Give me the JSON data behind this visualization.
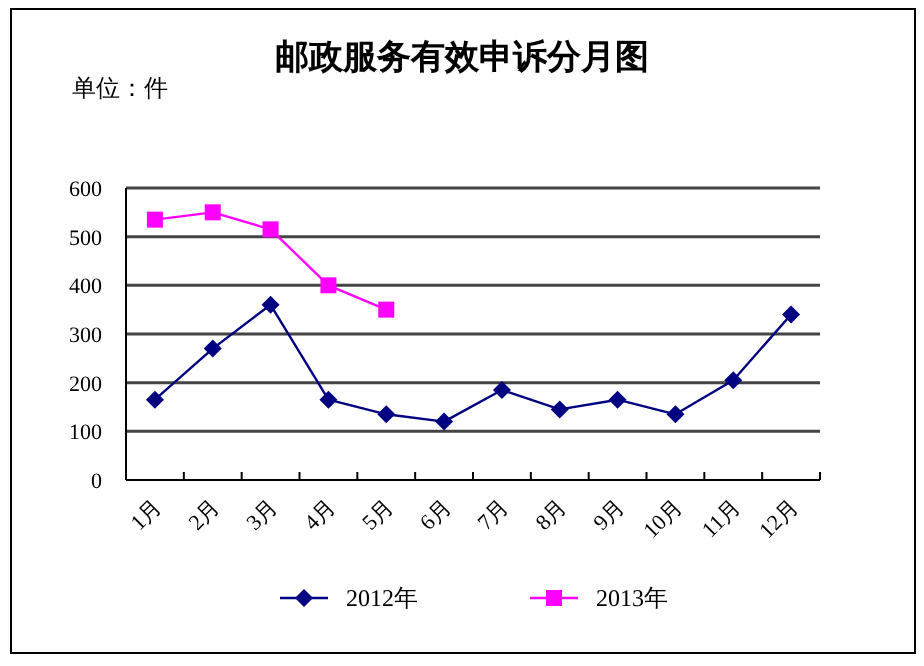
{
  "chart_data": {
    "type": "line",
    "title": "邮政服务有效申诉分月图",
    "ylabel": "单位：件",
    "categories": [
      "1月",
      "2月",
      "3月",
      "4月",
      "5月",
      "6月",
      "7月",
      "8月",
      "9月",
      "10月",
      "11月",
      "12月"
    ],
    "series": [
      {
        "name": "2012年",
        "color": "#000080",
        "marker": "diamond",
        "values": [
          165,
          270,
          360,
          165,
          135,
          120,
          185,
          145,
          165,
          135,
          205,
          340
        ]
      },
      {
        "name": "2013年",
        "color": "#ff00ff",
        "marker": "square",
        "values": [
          535,
          550,
          515,
          400,
          350,
          null,
          null,
          null,
          null,
          null,
          null,
          null
        ]
      }
    ],
    "ylim": [
      0,
      600
    ],
    "yticks": [
      0,
      100,
      200,
      300,
      400,
      500,
      600
    ],
    "grid": "y",
    "legend": "bottom",
    "line_style": "solid"
  }
}
